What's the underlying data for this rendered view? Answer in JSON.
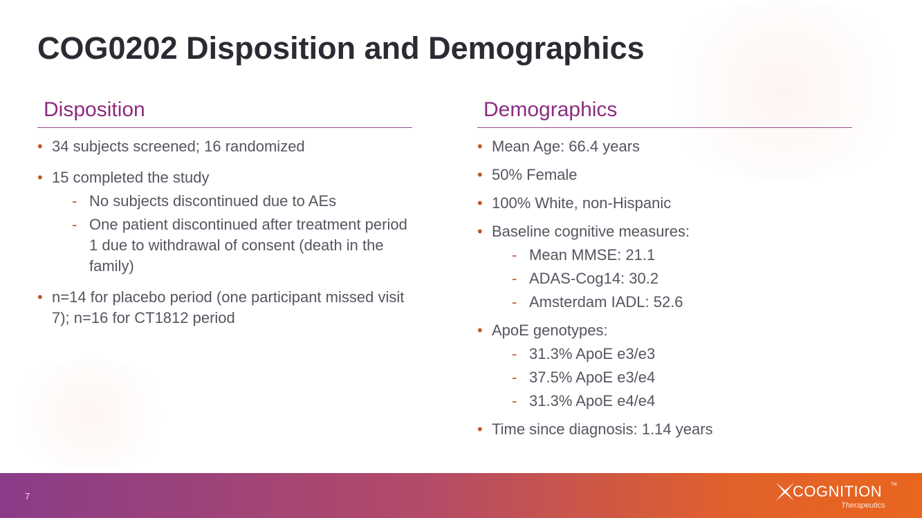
{
  "slide": {
    "title": "COG0202 Disposition and Demographics",
    "page_number": "7"
  },
  "disposition": {
    "heading": "Disposition",
    "items": [
      {
        "text": "34 subjects screened; 16 randomized",
        "sub": []
      },
      {
        "text": "15 completed the study",
        "sub": [
          "No subjects discontinued due to AEs",
          "One patient discontinued after treatment period 1 due to withdrawal of consent (death in the family)"
        ]
      },
      {
        "text": "n=14 for placebo period (one participant missed visit 7); n=16 for CT1812 period",
        "sub": []
      }
    ]
  },
  "demographics": {
    "heading": "Demographics",
    "items": [
      {
        "text": "Mean Age: 66.4 years",
        "sub": []
      },
      {
        "text": "50% Female",
        "sub": []
      },
      {
        "text": "100% White, non-Hispanic",
        "sub": []
      },
      {
        "text": "Baseline cognitive measures:",
        "sub": [
          "Mean MMSE: 21.1",
          "ADAS-Cog14: 30.2",
          "Amsterdam IADL: 52.6"
        ]
      },
      {
        "text": "ApoE genotypes:",
        "sub": [
          "31.3% ApoE e3/e3",
          "37.5% ApoE e3/e4",
          "31.3% ApoE e4/e4"
        ]
      },
      {
        "text": "Time since diagnosis: 1.14 years",
        "sub": []
      }
    ]
  },
  "logo": {
    "name": "COGNITION",
    "tagline": "Therapeutics",
    "tm": "TM"
  },
  "colors": {
    "heading": "#8b2c7e",
    "bullet": "#c0572a",
    "text": "#555560",
    "footer_start": "#8a3c88",
    "footer_end": "#e8661e"
  }
}
